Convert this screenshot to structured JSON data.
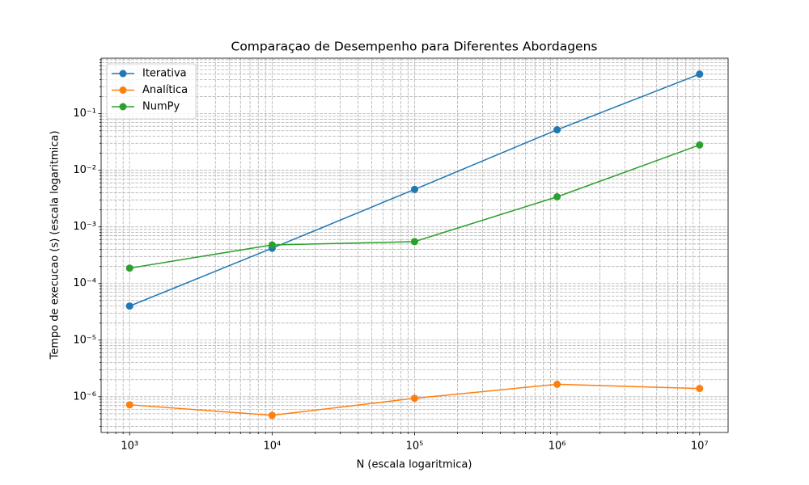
{
  "chart_data": {
    "type": "line",
    "title": "Comparaçao de Desempenho para Diferentes Abordagens",
    "x_label": "N (escala logaritmica)",
    "y_label": "Tempo de execucao (s) (escala logaritmica)",
    "x": [
      1000,
      10000,
      100000,
      1000000,
      10000000
    ],
    "series": [
      {
        "name": "Iterativa",
        "color": "#1f77b4",
        "values": [
          4e-05,
          0.00042,
          0.0046,
          0.052,
          0.5
        ]
      },
      {
        "name": "Analítica",
        "color": "#ff7f0e",
        "values": [
          7.2e-07,
          4.7e-07,
          9.4e-07,
          1.66e-06,
          1.4e-06
        ]
      },
      {
        "name": "NumPy",
        "color": "#2ca02c",
        "values": [
          0.000187,
          0.00048,
          0.00055,
          0.0034,
          0.028
        ]
      }
    ],
    "xscale": "log",
    "yscale": "log",
    "xlim": [
      631,
      15849000
    ],
    "ylim": [
      2.34e-07,
      0.955
    ],
    "xticks": [
      {
        "value": 1000,
        "label": "10³"
      },
      {
        "value": 10000,
        "label": "10⁴"
      },
      {
        "value": 100000,
        "label": "10⁵"
      },
      {
        "value": 1000000,
        "label": "10⁶"
      },
      {
        "value": 10000000,
        "label": "10⁷"
      }
    ],
    "yticks": [
      {
        "value": 1e-06,
        "label": "10⁻⁶"
      },
      {
        "value": 1e-05,
        "label": "10⁻⁵"
      },
      {
        "value": 0.0001,
        "label": "10⁻⁴"
      },
      {
        "value": 0.001,
        "label": "10⁻³"
      },
      {
        "value": 0.01,
        "label": "10⁻²"
      },
      {
        "value": 0.1,
        "label": "10⁻¹"
      }
    ],
    "xminorticks": [
      700,
      800,
      900,
      2000,
      3000,
      4000,
      5000,
      6000,
      7000,
      8000,
      9000,
      20000,
      30000,
      40000,
      50000,
      60000,
      70000,
      80000,
      90000,
      200000,
      300000,
      400000,
      500000,
      600000,
      700000,
      800000,
      900000,
      2000000,
      3000000,
      4000000,
      5000000,
      6000000,
      7000000,
      8000000,
      9000000
    ],
    "yminorticks": [
      3e-07,
      4e-07,
      5e-07,
      6e-07,
      7e-07,
      8e-07,
      9e-07,
      2e-06,
      3e-06,
      4e-06,
      5e-06,
      6e-06,
      7e-06,
      8e-06,
      9e-06,
      2e-05,
      3e-05,
      4e-05,
      5e-05,
      6e-05,
      7e-05,
      8e-05,
      9e-05,
      0.0002,
      0.0003,
      0.0004,
      0.0005,
      0.0006,
      0.0007,
      0.0008,
      0.0009,
      0.002,
      0.003,
      0.004,
      0.005,
      0.006,
      0.007,
      0.008,
      0.009,
      0.02,
      0.03,
      0.04,
      0.05,
      0.06,
      0.07,
      0.08,
      0.09,
      0.2,
      0.3,
      0.4,
      0.5,
      0.6,
      0.7,
      0.8,
      0.9
    ],
    "grid": true,
    "minor_grid": true,
    "legend": "upper left"
  }
}
